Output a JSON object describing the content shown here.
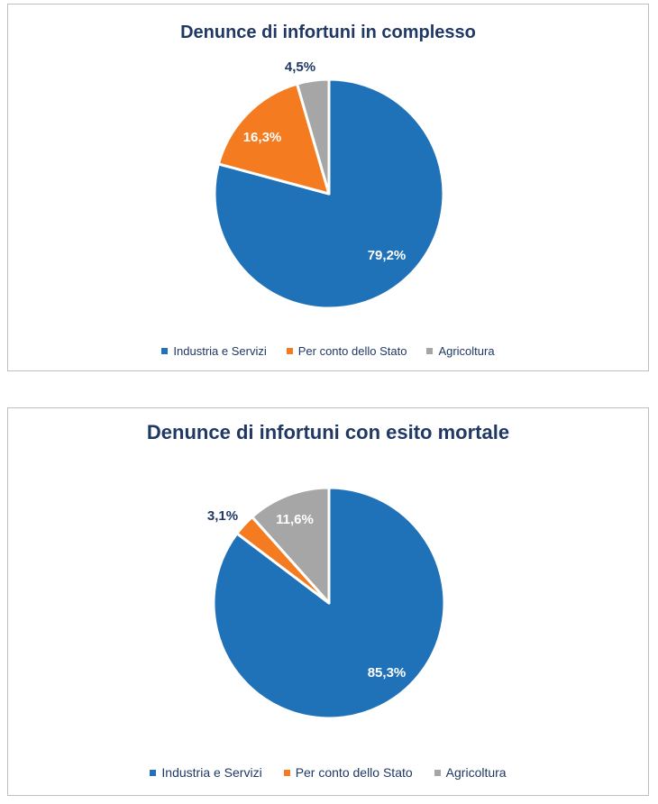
{
  "chart_data": [
    {
      "type": "pie",
      "title": "Denunce di infortuni in complesso",
      "categories": [
        "Industria e Servizi",
        "Per conto dello Stato",
        "Agricoltura"
      ],
      "values": [
        79.2,
        16.3,
        4.5
      ],
      "labels": [
        "79,2%",
        "16,3%",
        "4,5%"
      ],
      "colors": [
        "#1f71b8",
        "#f47b20",
        "#a6a6a6"
      ],
      "legend": "bottom"
    },
    {
      "type": "pie",
      "title": "Denunce di infortuni con esito mortale",
      "categories": [
        "Industria e Servizi",
        "Per conto dello Stato",
        "Agricoltura"
      ],
      "values": [
        85.3,
        3.1,
        11.6
      ],
      "labels": [
        "85,3%",
        "3,1%",
        "11,6%"
      ],
      "colors": [
        "#1f71b8",
        "#f47b20",
        "#a6a6a6"
      ],
      "legend": "bottom"
    }
  ]
}
